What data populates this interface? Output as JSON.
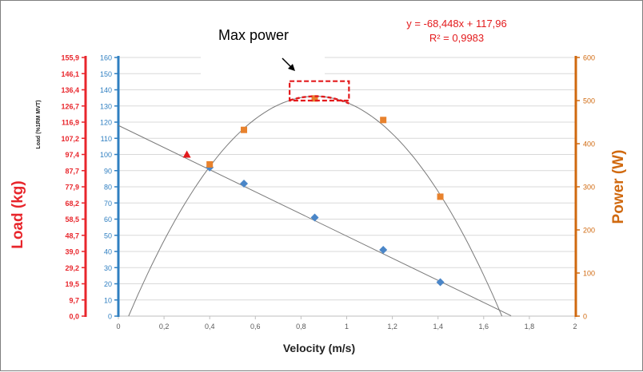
{
  "chart_data": {
    "type": "scatter",
    "title": "",
    "xlabel": "Velocity (m/s)",
    "xlim": [
      0,
      2
    ],
    "x_ticks": [
      "0",
      "0,2",
      "0,4",
      "0,6",
      "0,8",
      "1",
      "1,2",
      "1,4",
      "1,6",
      "1,8",
      "2"
    ],
    "y_axes": {
      "load_kg": {
        "label": "Load (kg)",
        "side": "far-left",
        "ticks": [
          "0,0",
          "9,7",
          "19,5",
          "29,2",
          "39,0",
          "48,7",
          "58,5",
          "68,2",
          "77,9",
          "87,7",
          "97,4",
          "107,2",
          "116,9",
          "126,7",
          "136,4",
          "146,1",
          "155,9"
        ]
      },
      "load_pct": {
        "label": "Load (%1RM MVT)",
        "side": "left",
        "ylim": [
          0,
          160
        ],
        "ticks": [
          "0",
          "10",
          "20",
          "30",
          "40",
          "50",
          "60",
          "70",
          "80",
          "90",
          "100",
          "110",
          "120",
          "130",
          "140",
          "150",
          "160"
        ]
      },
      "power": {
        "label": "Power (W)",
        "side": "right",
        "ylim": [
          0,
          600
        ],
        "ticks": [
          "0",
          "100",
          "200",
          "300",
          "400",
          "500",
          "600"
        ]
      }
    },
    "series": [
      {
        "axis": "load_pct",
        "marker": "diamond",
        "color": "#4a86c8",
        "points": [
          [
            0.4,
            92
          ],
          [
            0.55,
            82
          ],
          [
            0.86,
            61
          ],
          [
            1.16,
            41
          ],
          [
            1.41,
            21
          ]
        ]
      },
      {
        "axis": "power",
        "marker": "square",
        "color": "#e8822d",
        "points": [
          [
            0.4,
            352
          ],
          [
            0.55,
            432
          ],
          [
            0.86,
            505
          ],
          [
            1.16,
            455
          ],
          [
            1.41,
            277
          ]
        ]
      },
      {
        "axis": "load_pct",
        "marker": "triangle",
        "color": "#e31a1c",
        "points": [
          [
            0.3,
            100
          ]
        ]
      }
    ],
    "linear_fit": {
      "axis": "load_pct",
      "slope": -68.448,
      "intercept": 117.96,
      "x_range": [
        0,
        1.72
      ]
    },
    "power_curve": {
      "axis": "power",
      "peak_x": 0.86,
      "peak_y": 510,
      "zero_crossings": [
        0.045,
        1.68
      ]
    },
    "annotations": {
      "equation": "y = -68,448x + 117,96",
      "r_squared": "R² = 0,9983",
      "max_power": "Max power"
    },
    "grid": true,
    "colors": {
      "load_kg_axis": "#e8262c",
      "load_pct_axis": "#2f7fc1",
      "power_axis": "#d0690f",
      "equation": "#e31a1c",
      "fit_line": "#7a7a7a",
      "max_power_box": "#e31a1c"
    }
  }
}
